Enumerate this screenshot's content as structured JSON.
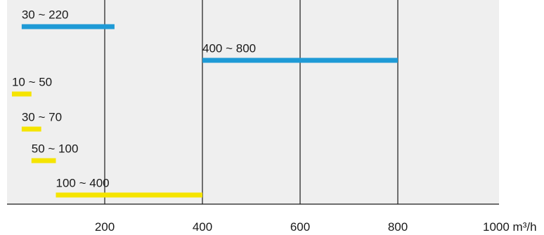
{
  "chart_data": {
    "type": "bar",
    "orientation": "horizontal-range",
    "xlabel": "m³/h",
    "xlim": [
      0,
      1000
    ],
    "x_ticks": [
      200,
      400,
      600,
      800,
      1000
    ],
    "grid": "vertical",
    "colors": {
      "blue": "#1e9ad6",
      "yellow": "#f5e400",
      "background": "#efefef",
      "grid": "#1a1a1a"
    },
    "ranges": [
      {
        "label": "30 ~ 220",
        "start": 30,
        "end": 220,
        "color": "blue"
      },
      {
        "label": "400 ~ 800",
        "start": 400,
        "end": 800,
        "color": "blue"
      },
      {
        "label": "10 ~ 50",
        "start": 10,
        "end": 50,
        "color": "yellow"
      },
      {
        "label": "30 ~ 70",
        "start": 30,
        "end": 70,
        "color": "yellow"
      },
      {
        "label": "50 ~ 100",
        "start": 50,
        "end": 100,
        "color": "yellow"
      },
      {
        "label": "100 ~ 400",
        "start": 100,
        "end": 400,
        "color": "yellow"
      }
    ]
  }
}
